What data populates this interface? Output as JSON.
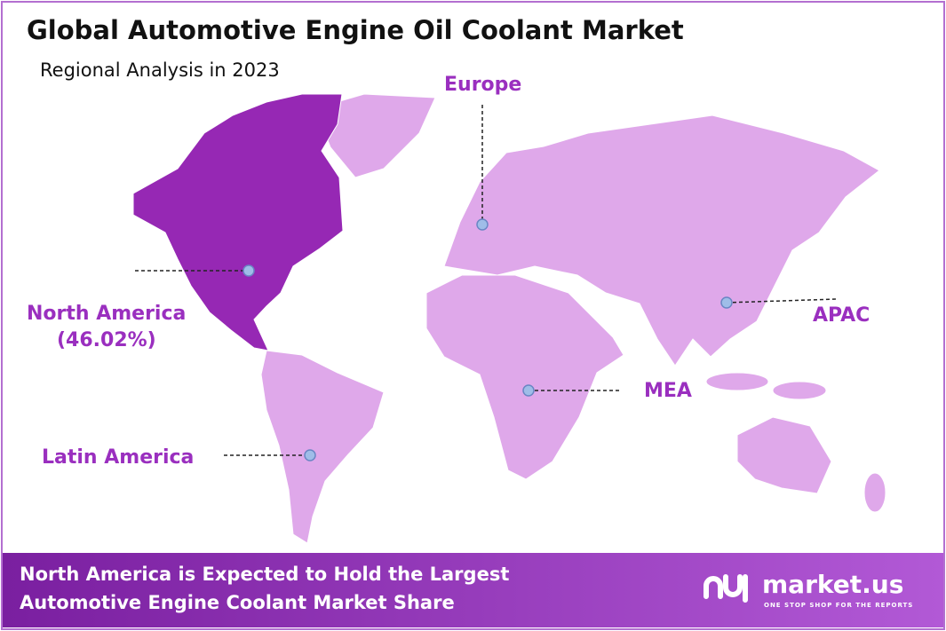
{
  "header": {
    "title": "Global Automotive Engine Oil Coolant Market",
    "subtitle": "Regional Analysis in 2023"
  },
  "regions": [
    {
      "label": "North America",
      "share": "(46.02%)"
    },
    {
      "label": "Europe"
    },
    {
      "label": "APAC"
    },
    {
      "label": "MEA"
    },
    {
      "label": "Latin America"
    }
  ],
  "footer": {
    "lines": [
      "North America is Expected to Hold the Largest",
      "Automotive Engine Coolant Market Share"
    ],
    "brand": "market.us",
    "tagline": "ONE STOP SHOP FOR THE REPORTS"
  }
}
